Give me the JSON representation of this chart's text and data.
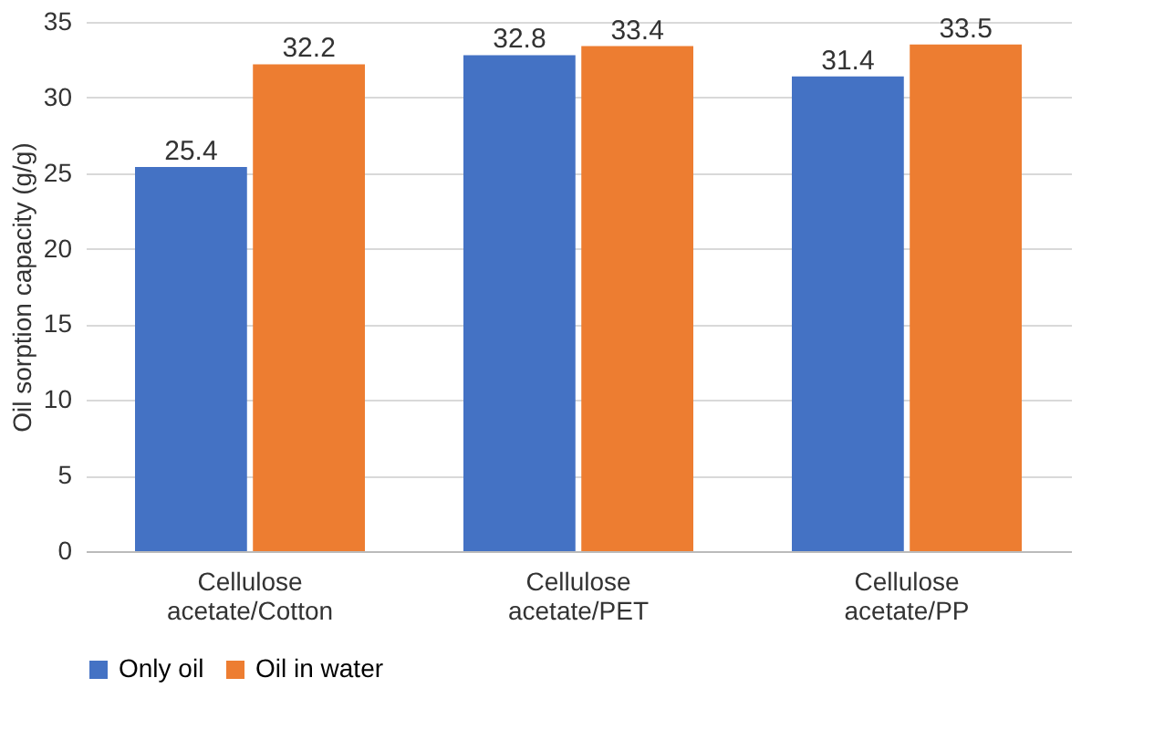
{
  "chart_data": {
    "type": "bar",
    "ylabel": "Oil sorption capacity (g/g)",
    "categories": [
      "Cellulose acetate/Cotton",
      "Cellulose acetate/PET",
      "Cellulose acetate/PP"
    ],
    "series": [
      {
        "name": "Only oil",
        "color": "#4472c4",
        "values": [
          25.4,
          32.8,
          31.4
        ]
      },
      {
        "name": "Oil in water",
        "color": "#ed7d31",
        "values": [
          32.2,
          33.4,
          33.5
        ]
      }
    ],
    "ylim": [
      0,
      35
    ],
    "yticks": [
      0,
      5,
      10,
      15,
      20,
      25,
      30,
      35
    ],
    "grid": "y",
    "legend": "bottom",
    "data_labels": true
  }
}
